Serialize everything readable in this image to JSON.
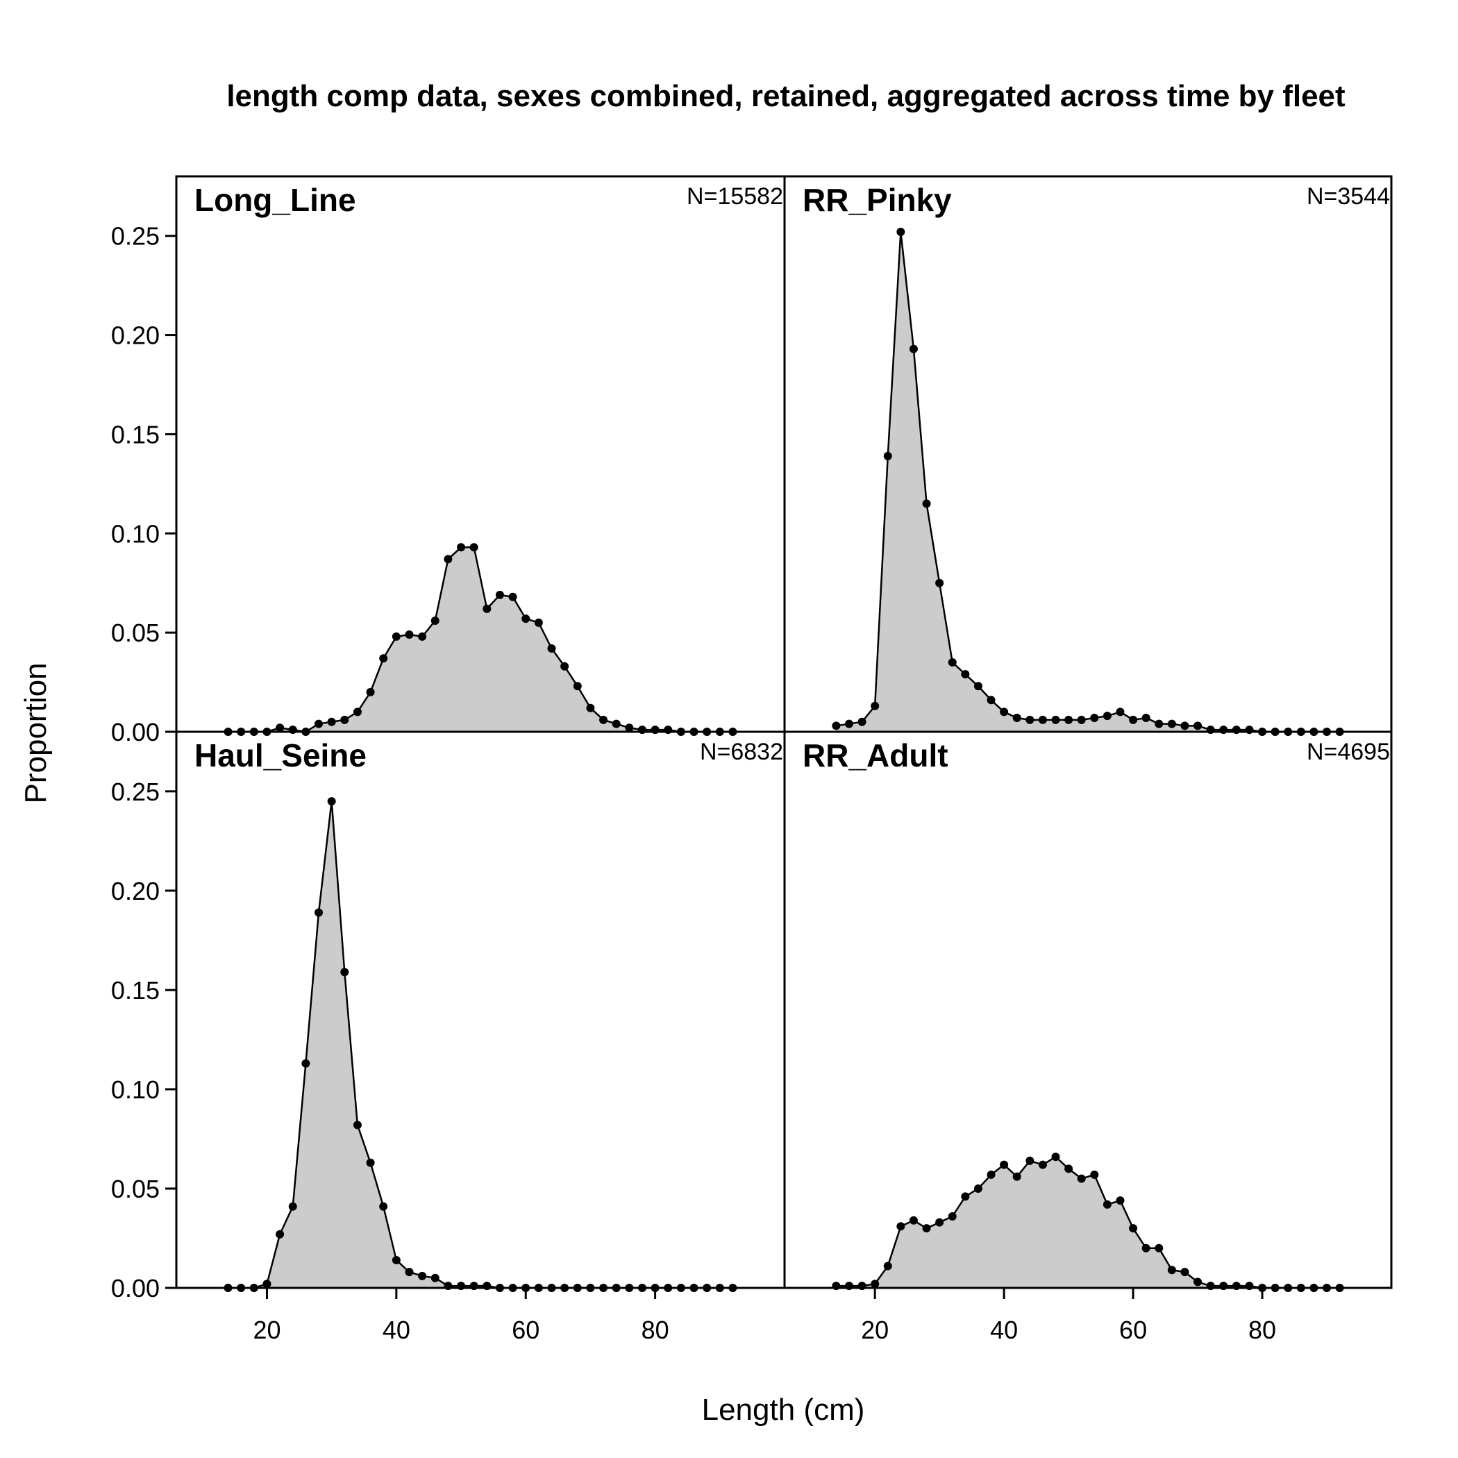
{
  "title": "length comp data, sexes combined, retained, aggregated across time by fleet",
  "xlabel": "Length (cm)",
  "ylabel": "Proportion",
  "colors": {
    "fill": "#cccccc",
    "line": "#000000",
    "point": "#000000"
  },
  "chart_data": {
    "type": "area",
    "layout": "2x2 panels",
    "xlim": [
      6,
      100
    ],
    "ylim": [
      0,
      0.28
    ],
    "xticks": [
      20,
      40,
      60,
      80
    ],
    "yticks": [
      0.0,
      0.05,
      0.1,
      0.15,
      0.2,
      0.25
    ],
    "ytick_labels": [
      "0.00",
      "0.05",
      "0.10",
      "0.15",
      "0.20",
      "0.25"
    ],
    "grid": false,
    "x": [
      14,
      16,
      18,
      20,
      22,
      24,
      26,
      28,
      30,
      32,
      34,
      36,
      38,
      40,
      42,
      44,
      46,
      48,
      50,
      52,
      54,
      56,
      58,
      60,
      62,
      64,
      66,
      68,
      70,
      72,
      74,
      76,
      78,
      80,
      82,
      84,
      86,
      88,
      90,
      92
    ],
    "panels": [
      {
        "name": "Long_Line",
        "n_label": "N=15582",
        "values": [
          0,
          0,
          0,
          0,
          0.002,
          0.001,
          0,
          0.004,
          0.005,
          0.006,
          0.01,
          0.02,
          0.037,
          0.048,
          0.049,
          0.048,
          0.056,
          0.087,
          0.093,
          0.093,
          0.062,
          0.069,
          0.068,
          0.057,
          0.055,
          0.042,
          0.033,
          0.023,
          0.012,
          0.006,
          0.004,
          0.002,
          0.001,
          0.001,
          0.001,
          0,
          0,
          0,
          0,
          0
        ]
      },
      {
        "name": "RR_Pinky",
        "n_label": "N=3544",
        "values": [
          0.003,
          0.004,
          0.005,
          0.013,
          0.139,
          0.252,
          0.193,
          0.115,
          0.075,
          0.035,
          0.029,
          0.023,
          0.016,
          0.01,
          0.007,
          0.006,
          0.006,
          0.006,
          0.006,
          0.006,
          0.007,
          0.008,
          0.01,
          0.006,
          0.007,
          0.004,
          0.004,
          0.003,
          0.003,
          0.001,
          0.001,
          0.001,
          0.001,
          0,
          0,
          0,
          0,
          0,
          0,
          0
        ]
      },
      {
        "name": "Haul_Seine",
        "n_label": "N=6832",
        "values": [
          0,
          0,
          0,
          0.002,
          0.027,
          0.041,
          0.113,
          0.189,
          0.245,
          0.159,
          0.082,
          0.063,
          0.041,
          0.014,
          0.008,
          0.006,
          0.005,
          0.001,
          0.001,
          0.001,
          0.001,
          0,
          0,
          0,
          0,
          0,
          0,
          0,
          0,
          0,
          0,
          0,
          0,
          0,
          0,
          0,
          0,
          0,
          0,
          0
        ]
      },
      {
        "name": "RR_Adult",
        "n_label": "N=4695",
        "values": [
          0.001,
          0.001,
          0.001,
          0.002,
          0.011,
          0.031,
          0.034,
          0.03,
          0.033,
          0.036,
          0.046,
          0.05,
          0.057,
          0.062,
          0.056,
          0.064,
          0.062,
          0.066,
          0.06,
          0.055,
          0.057,
          0.042,
          0.044,
          0.03,
          0.02,
          0.02,
          0.009,
          0.008,
          0.003,
          0.001,
          0.001,
          0.001,
          0.001,
          0,
          0,
          0,
          0,
          0,
          0,
          0
        ]
      }
    ]
  }
}
